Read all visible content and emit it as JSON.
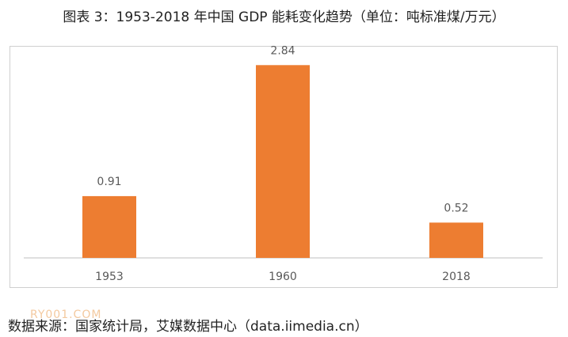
{
  "title": "图表 3：1953-2018 年中国 GDP 能耗变化趋势（单位：吨标准煤/万元）",
  "source": "数据来源：国家统计局，艾媒数据中心（data.iimedia.cn）",
  "watermark": "RY001.COM",
  "colors": {
    "bar": "#ED7D31",
    "axis": "#bfbfbf",
    "label": "#595959"
  },
  "chart_data": {
    "type": "bar",
    "title": "图表 3：1953-2018 年中国 GDP 能耗变化趋势（单位：吨标准煤/万元）",
    "xlabel": "",
    "ylabel": "",
    "categories": [
      "1953",
      "1960",
      "2018"
    ],
    "values": [
      0.91,
      2.84,
      0.52
    ],
    "data_labels": [
      "0.91",
      "2.84",
      "0.52"
    ],
    "ylim": [
      0,
      3.1
    ],
    "grid": false,
    "legend": "none"
  }
}
